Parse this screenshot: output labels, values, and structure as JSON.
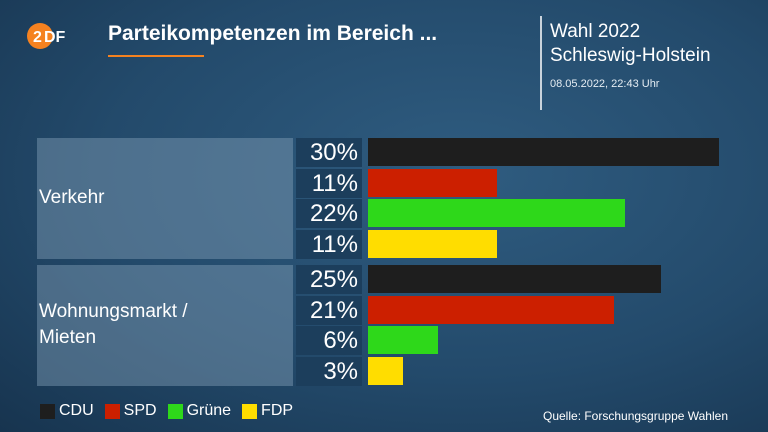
{
  "header": {
    "logo_text": "ZDF",
    "title": "Parteikompetenzen im Bereich ...",
    "election_title": "Wahl 2022",
    "election_region": "Schleswig-Holstein",
    "timestamp": "08.05.2022, 22:43 Uhr"
  },
  "colors": {
    "CDU": "#1e1e1e",
    "SPD": "#cc1f00",
    "Grüne": "#2ed81a",
    "FDP": "#ffdd00",
    "accent": "#f58220"
  },
  "chart_data": {
    "type": "bar",
    "orientation": "horizontal",
    "categories": [
      "Verkehr",
      "Wohnungsmarkt /\nMieten"
    ],
    "series": [
      {
        "name": "CDU",
        "values": [
          30,
          25
        ]
      },
      {
        "name": "SPD",
        "values": [
          11,
          21
        ]
      },
      {
        "name": "Grüne",
        "values": [
          22,
          6
        ]
      },
      {
        "name": "FDP",
        "values": [
          11,
          3
        ]
      }
    ],
    "value_labels": [
      [
        "30%",
        "11%",
        "22%",
        "11%"
      ],
      [
        "25%",
        "21%",
        "6%",
        "3%"
      ]
    ],
    "unit": "%",
    "xlim": [
      0,
      30
    ],
    "legend_position": "bottom-left",
    "title": "Parteikompetenzen im Bereich ..."
  },
  "legend": [
    {
      "label": "CDU",
      "color_key": "CDU"
    },
    {
      "label": "SPD",
      "color_key": "SPD"
    },
    {
      "label": "Grüne",
      "color_key": "Grüne"
    },
    {
      "label": "FDP",
      "color_key": "FDP"
    }
  ],
  "source": "Quelle: Forschungsgruppe Wahlen"
}
